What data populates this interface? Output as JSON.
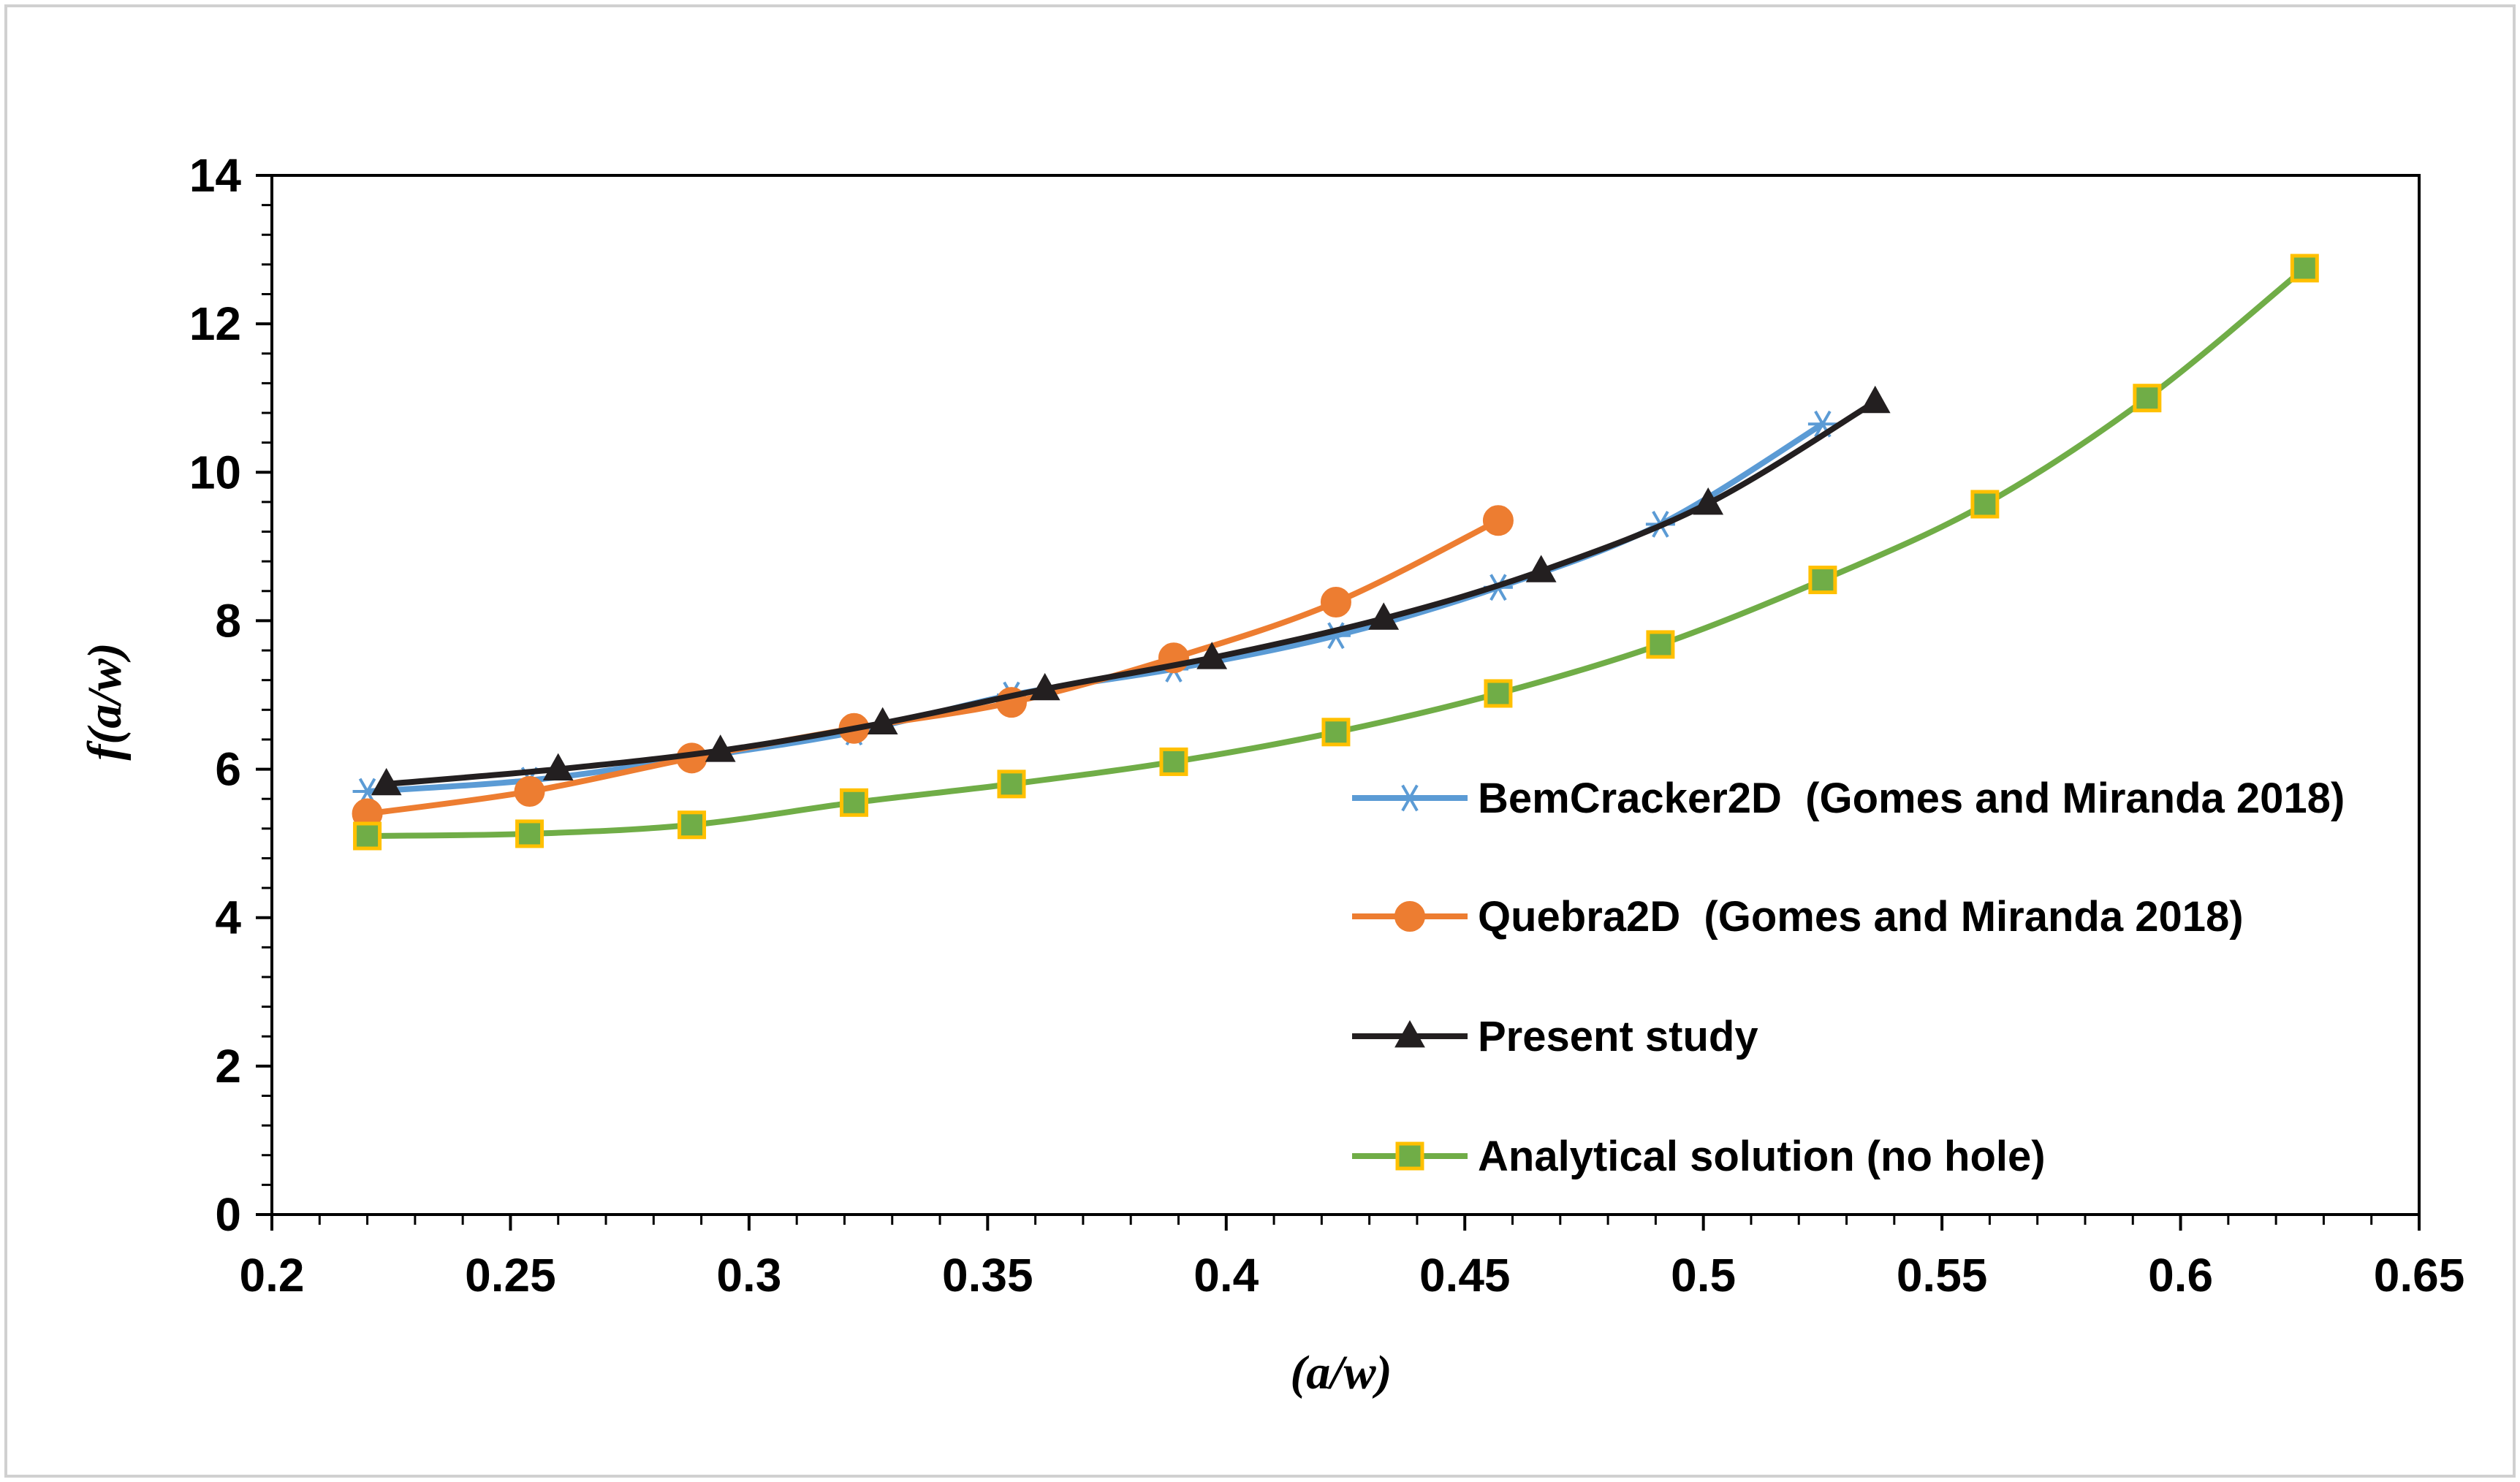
{
  "chart_data": {
    "type": "line",
    "title": "",
    "xlabel": "(a/w)",
    "ylabel": "f(a/w)",
    "xlim": [
      0.2,
      0.65
    ],
    "ylim": [
      0,
      14
    ],
    "xticks": [
      0.2,
      0.25,
      0.3,
      0.35,
      0.4,
      0.45,
      0.5,
      0.55,
      0.6,
      0.65
    ],
    "xtick_labels": [
      "0.2",
      "0.25",
      "0.3",
      "0.35",
      "0.4",
      "0.45",
      "0.5",
      "0.55",
      "0.6",
      "0.65"
    ],
    "yticks": [
      0,
      2,
      4,
      6,
      8,
      10,
      12,
      14
    ],
    "ytick_labels": [
      "0",
      "2",
      "4",
      "6",
      "8",
      "10",
      "12",
      "14"
    ],
    "grid": false,
    "legend_position": "right",
    "series": [
      {
        "name": "BemCracker2D  (Gomes and Miranda 2018)",
        "color": "#5B9BD5",
        "marker": "asterisk",
        "x": [
          0.22,
          0.254,
          0.288,
          0.322,
          0.355,
          0.389,
          0.423,
          0.457,
          0.491,
          0.525
        ],
        "y": [
          5.7,
          5.85,
          6.15,
          6.5,
          7.0,
          7.35,
          7.8,
          8.45,
          9.3,
          10.65
        ]
      },
      {
        "name": "Quebra2D  (Gomes and Miranda 2018)",
        "color": "#ED7D31",
        "marker": "circle",
        "x": [
          0.22,
          0.254,
          0.288,
          0.322,
          0.355,
          0.389,
          0.423,
          0.457
        ],
        "y": [
          5.4,
          5.7,
          6.15,
          6.55,
          6.9,
          7.5,
          8.25,
          9.35
        ]
      },
      {
        "name": "Present study",
        "color": "#231F20",
        "marker": "triangle",
        "x": [
          0.224,
          0.26,
          0.294,
          0.328,
          0.362,
          0.397,
          0.433,
          0.466,
          0.501,
          0.536
        ],
        "y": [
          5.8,
          6.0,
          6.25,
          6.62,
          7.08,
          7.5,
          8.03,
          8.67,
          9.58,
          10.95
        ]
      },
      {
        "name": "Analytical solution (no hole)",
        "color": "#70AD47",
        "marker": "square",
        "marker_face": "#70AD47",
        "marker_edge": "#FFC000",
        "x": [
          0.22,
          0.254,
          0.288,
          0.322,
          0.355,
          0.389,
          0.423,
          0.457,
          0.491,
          0.525,
          0.559,
          0.593,
          0.626
        ],
        "y": [
          5.1,
          5.13,
          5.25,
          5.55,
          5.8,
          6.1,
          6.5,
          7.02,
          7.68,
          8.55,
          9.57,
          11.0,
          12.75
        ]
      }
    ]
  }
}
